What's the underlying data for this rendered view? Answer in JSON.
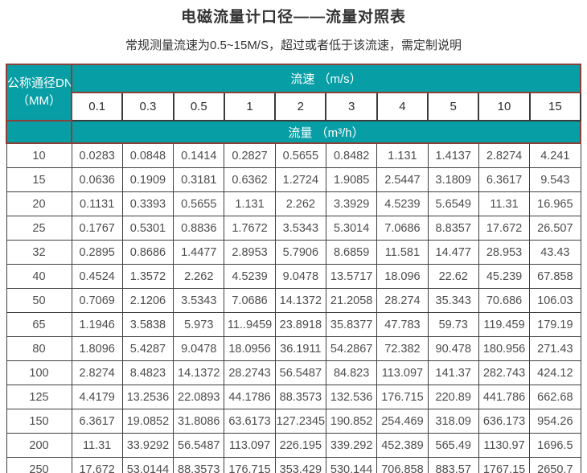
{
  "page": {
    "title": "电磁流量计口径——流量对照表",
    "subtitle": "常规测量流速为0.5~15M/S，超过或者低于该流速，需定制说明"
  },
  "colors": {
    "teal_header": "#079ea6",
    "teal_border": "#8b4038",
    "cell_border": "#3f3f3f",
    "data_text": "#4d4d4d"
  },
  "chart_data": {
    "type": "table",
    "title": "电磁流量计口径——流量对照表",
    "subtitle": "常规测量流速为0.5~15M/S，超过或者低于该流速，需定制说明",
    "corner_line1": "公称通径DN",
    "corner_line2": "（MM）",
    "speed_header": "流速 （m/s）",
    "flow_header": "流量 （m³/h）",
    "speed_columns": [
      "0.1",
      "0.3",
      "0.5",
      "1",
      "2",
      "3",
      "4",
      "5",
      "10",
      "15"
    ],
    "rows": [
      {
        "dn": "10",
        "values": [
          "0.0283",
          "0.0848",
          "0.1414",
          "0.2827",
          "0.5655",
          "0.8482",
          "1.131",
          "1.4137",
          "2.8274",
          "4.241"
        ]
      },
      {
        "dn": "15",
        "values": [
          "0.0636",
          "0.1909",
          "0.3181",
          "0.6362",
          "1.2724",
          "1.9085",
          "2.5447",
          "3.1809",
          "6.3617",
          "9.543"
        ]
      },
      {
        "dn": "20",
        "values": [
          "0.1131",
          "0.3393",
          "0.5655",
          "1.131",
          "2.262",
          "3.3929",
          "4.5239",
          "5.6549",
          "11.31",
          "16.965"
        ]
      },
      {
        "dn": "25",
        "values": [
          "0.1767",
          "0.5301",
          "0.8836",
          "1.7672",
          "3.5343",
          "5.3014",
          "7.0686",
          "8.8357",
          "17.672",
          "26.507"
        ]
      },
      {
        "dn": "32",
        "values": [
          "0.2895",
          "0.8686",
          "1.4477",
          "2.8953",
          "5.7906",
          "8.6859",
          "11.581",
          "14.477",
          "28.953",
          "43.43"
        ]
      },
      {
        "dn": "40",
        "values": [
          "0.4524",
          "1.3572",
          "2.262",
          "4.5239",
          "9.0478",
          "13.5717",
          "18.096",
          "22.62",
          "45.239",
          "67.858"
        ]
      },
      {
        "dn": "50",
        "values": [
          "0.7069",
          "2.1206",
          "3.5343",
          "7.0686",
          "14.1372",
          "21.2058",
          "28.274",
          "35.343",
          "70.686",
          "106.03"
        ]
      },
      {
        "dn": "65",
        "values": [
          "1.1946",
          "3.5838",
          "5.973",
          "11..9459",
          "23.8918",
          "35.8377",
          "47.783",
          "59.73",
          "119.459",
          "179.19"
        ]
      },
      {
        "dn": "80",
        "values": [
          "1.8096",
          "5.4287",
          "9.0478",
          "18.0956",
          "36.1911",
          "54.2867",
          "72.382",
          "90.478",
          "180.956",
          "271.43"
        ]
      },
      {
        "dn": "100",
        "values": [
          "2.8274",
          "8.4823",
          "14.1372",
          "28.2743",
          "56.5487",
          "84.823",
          "113.097",
          "141.37",
          "282.743",
          "424.12"
        ]
      },
      {
        "dn": "125",
        "values": [
          "4.4179",
          "13.2536",
          "22.0893",
          "44.1786",
          "88.3573",
          "132.536",
          "176.715",
          "220.89",
          "441.786",
          "662.68"
        ]
      },
      {
        "dn": "150",
        "values": [
          "6.3617",
          "19.0852",
          "31.8086",
          "63.6173",
          "127.2345",
          "190.852",
          "254.469",
          "318.09",
          "636.173",
          "954.26"
        ]
      },
      {
        "dn": "200",
        "values": [
          "11.31",
          "33.9292",
          "56.5487",
          "113.097",
          "226.195",
          "339.292",
          "452.389",
          "565.49",
          "1130.97",
          "1696.5"
        ]
      },
      {
        "dn": "250",
        "values": [
          "17.672",
          "53.0144",
          "88.3573",
          "176.715",
          "353.429",
          "530.144",
          "706.858",
          "883.57",
          "1767.15",
          "2650.7"
        ]
      }
    ]
  }
}
